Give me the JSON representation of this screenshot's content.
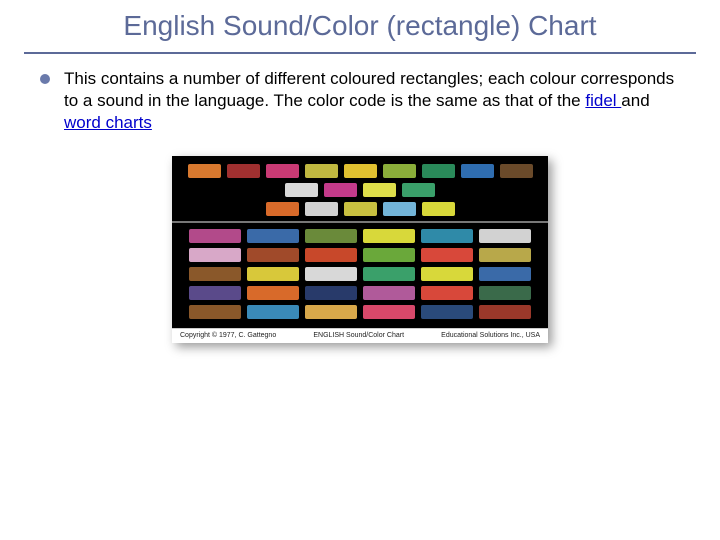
{
  "title": "English Sound/Color (rectangle) Chart",
  "bullet": {
    "pre": "This contains a number of different coloured rectangles; each colour corresponds to a sound in the language. The color code is the same as that of the ",
    "link1": "fidel ",
    "mid": "and ",
    "link2": "word charts"
  },
  "caption": {
    "left": "Copyright © 1977, C. Gattegno",
    "center": "ENGLISH Sound/Color Chart",
    "right": "Educational Solutions Inc., USA"
  },
  "top_rows": [
    [
      "#d8792f",
      "#a03030",
      "#c93a74",
      "#c0b840",
      "#e0c030",
      "#8bae3a",
      "#2a8a5a",
      "#2f6db0",
      "#6a4a2a"
    ],
    [
      "#d8d8d8",
      "#c43a8a",
      "#dede4a",
      "#3aa06a"
    ],
    [
      "#d86a2a",
      "#d2d2d2",
      "#c8c040",
      "#73b4d8",
      "#d8d83a"
    ]
  ],
  "bottom_rows": [
    [
      "#b24a8a",
      "#3a6aa8",
      "#6a8a3a",
      "#d8d83a",
      "#2f8aa8",
      "#d2d2d2"
    ],
    [
      "#d8a8c8",
      "#a04a2a",
      "#c8482a",
      "#6aa83a",
      "#d8483a",
      "#b8a84a"
    ],
    [
      "#8a582a",
      "#d8c83a",
      "#d8d8d8",
      "#3aa06a",
      "#d8d83a",
      "#3a6aa8"
    ],
    [
      "#5a4a8a",
      "#d86a2a",
      "#283a6a",
      "#b05a9a",
      "#d8483a",
      "#3a6a4a"
    ],
    [
      "#8a582a",
      "#3a8ab8",
      "#d8a84a",
      "#d8486a",
      "#2a4a7a",
      "#9a382a"
    ]
  ]
}
